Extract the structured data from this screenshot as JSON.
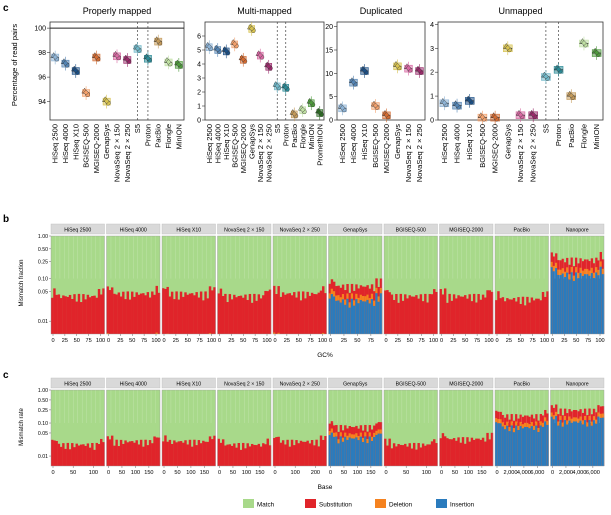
{
  "panel_letters": [
    "c",
    "b",
    "c"
  ],
  "panel_c": {
    "ylabel": "Percentage of read pairs",
    "facets": [
      {
        "title": "Properly mapped",
        "ylim": [
          92.5,
          100.5
        ],
        "ticks": [
          94,
          96,
          98,
          100
        ],
        "vlines": [
          8.5,
          9.5
        ],
        "hline": 100,
        "categories": [
          "HiSeq 2500",
          "HiSeq 4000",
          "HiSeq X10",
          "BGISEQ-500",
          "MGISEQ-2000",
          "GenapSys",
          "NovaSeq 2 × 150",
          "NovaSeq 2 × 250",
          "S5",
          "Proton",
          "PacBio",
          "Flongle",
          "MinION"
        ],
        "colors": [
          "#8db3d6",
          "#5384b4",
          "#1b4f86",
          "#f3a06b",
          "#d46a30",
          "#d7c24f",
          "#d868a2",
          "#9b2a6b",
          "#6fb7c8",
          "#2a8a96",
          "#c49a5a",
          "#bfe0a2",
          "#4e9a3c"
        ],
        "values": [
          97.6,
          97.1,
          96.5,
          94.7,
          97.6,
          94.0,
          97.7,
          97.4,
          98.3,
          97.5,
          98.9,
          97.2,
          97.0
        ]
      },
      {
        "title": "Multi-mapped",
        "ylim": [
          0,
          7
        ],
        "ticks": [
          0,
          1,
          2,
          3,
          4,
          5,
          6
        ],
        "vlines": [
          8.5,
          9.5
        ],
        "categories": [
          "HiSeq 2500",
          "HiSeq 4000",
          "HiSeq X10",
          "BGISEQ-500",
          "MGISEQ-2000",
          "GenapSys",
          "NovaSeq 2 × 150",
          "NovaSeq 2 × 250",
          "S5",
          "Proton",
          "PacBio",
          "Flongle",
          "MinION",
          "PromethION"
        ],
        "colors": [
          "#8db3d6",
          "#5384b4",
          "#1b4f86",
          "#f3a06b",
          "#d46a30",
          "#d7c24f",
          "#d868a2",
          "#9b2a6b",
          "#6fb7c8",
          "#2a8a96",
          "#c49a5a",
          "#bfe0a2",
          "#4e9a3c",
          "#2d6b24"
        ],
        "values": [
          5.2,
          5.0,
          4.9,
          5.4,
          4.3,
          6.5,
          4.6,
          3.8,
          2.4,
          2.3,
          0.4,
          0.7,
          1.2,
          0.5
        ]
      },
      {
        "title": "Duplicated",
        "ylim": [
          0,
          21
        ],
        "ticks": [
          0,
          5,
          10,
          15,
          20
        ],
        "categories": [
          "HiSeq 2500",
          "HiSeq 4000",
          "HiSeq X10",
          "BGISEQ-500",
          "MGISEQ-2000",
          "GenapSys",
          "NovaSeq 2 × 150",
          "NovaSeq 2 × 250"
        ],
        "colors": [
          "#8db3d6",
          "#5384b4",
          "#1b4f86",
          "#f3a06b",
          "#d46a30",
          "#d7c24f",
          "#d868a2",
          "#9b2a6b"
        ],
        "values": [
          2.5,
          8.0,
          10.5,
          3.0,
          1.0,
          11.5,
          11.0,
          10.5
        ]
      },
      {
        "title": "Unmapped",
        "ylim": [
          0,
          4.1
        ],
        "ticks": [
          0,
          1,
          2,
          3,
          4
        ],
        "vlines": [
          8.5,
          9.5
        ],
        "categories": [
          "HiSeq 2500",
          "HiSeq 4000",
          "HiSeq X10",
          "BGISEQ-500",
          "MGISEQ-2000",
          "GenapSys",
          "NovaSeq 2 × 150",
          "NovaSeq 2 × 250",
          "S5",
          "Proton",
          "PacBio",
          "Flongle",
          "MinION"
        ],
        "colors": [
          "#8db3d6",
          "#5384b4",
          "#1b4f86",
          "#f3a06b",
          "#d46a30",
          "#d7c24f",
          "#d868a2",
          "#9b2a6b",
          "#6fb7c8",
          "#2a8a96",
          "#c49a5a",
          "#bfe0a2",
          "#4e9a3c"
        ],
        "values": [
          0.7,
          0.6,
          0.8,
          0.1,
          0.1,
          3.0,
          0.2,
          0.2,
          1.8,
          2.1,
          1.0,
          3.2,
          2.8
        ]
      }
    ]
  },
  "panel_b": {
    "ylabel": "Mismatch fraction",
    "xlabel": "GC%",
    "yticks": [
      "1.00",
      "0.50",
      "0.25",
      "0.10",
      "0.05",
      "0.01"
    ],
    "facets": [
      {
        "title": "HiSeq 2500",
        "xticks": [
          "0",
          "25",
          "50",
          "75",
          "100"
        ],
        "error": 0.035
      },
      {
        "title": "HiSeq 4000",
        "xticks": [
          "0",
          "25",
          "50",
          "75",
          "100"
        ],
        "error": 0.04
      },
      {
        "title": "HiSeq X10",
        "xticks": [
          "0",
          "25",
          "50",
          "75",
          "100"
        ],
        "error": 0.04
      },
      {
        "title": "NovaSeq 2 × 150",
        "xticks": [
          "0",
          "25",
          "50",
          "75",
          "100"
        ],
        "error": 0.035
      },
      {
        "title": "NovaSeq 2 × 250",
        "xticks": [
          "0",
          "25",
          "50",
          "75",
          "100"
        ],
        "error": 0.04
      },
      {
        "title": "GenapSys",
        "xticks": [
          "0",
          "25",
          "50",
          "75"
        ],
        "error": 0.06
      },
      {
        "title": "BGISEQ-500",
        "xticks": [
          "0",
          "25",
          "50",
          "75",
          "100"
        ],
        "error": 0.035
      },
      {
        "title": "MGISEQ-2000",
        "xticks": [
          "0",
          "25",
          "50",
          "75",
          "100"
        ],
        "error": 0.035
      },
      {
        "title": "PacBio",
        "xticks": [
          "0",
          "25",
          "50",
          "75",
          "100"
        ],
        "error": 0.03
      },
      {
        "title": "Nanopore",
        "xticks": [
          "0",
          "25",
          "50",
          "75",
          "100"
        ],
        "error": 0.25
      }
    ]
  },
  "panel_c2": {
    "ylabel": "Mismatch rate",
    "xlabel": "Base",
    "yticks": [
      "1.00",
      "0.50",
      "0.25",
      "0.10",
      "0.05",
      "0.01"
    ],
    "facets": [
      {
        "title": "HiSeq 2500",
        "xticks": [
          "0",
          "50",
          "100"
        ],
        "error": 0.02
      },
      {
        "title": "HiSeq 4000",
        "xticks": [
          "0",
          "50",
          "100",
          "150"
        ],
        "error": 0.025
      },
      {
        "title": "HiSeq X10",
        "xticks": [
          "0",
          "50",
          "100",
          "150"
        ],
        "error": 0.025
      },
      {
        "title": "NovaSeq 2 × 150",
        "xticks": [
          "0",
          "50",
          "100",
          "150"
        ],
        "error": 0.02
      },
      {
        "title": "NovaSeq 2 × 250",
        "xticks": [
          "0",
          "100",
          "200"
        ],
        "error": 0.025
      },
      {
        "title": "GenapSys",
        "xticks": [
          "0",
          "50",
          "100",
          "150"
        ],
        "error": 0.07
      },
      {
        "title": "BGISEQ-500",
        "xticks": [
          "0",
          "50",
          "100"
        ],
        "error": 0.02
      },
      {
        "title": "MGISEQ-2000",
        "xticks": [
          "0",
          "50",
          "100",
          "150"
        ],
        "error": 0.03
      },
      {
        "title": "PacBio",
        "xticks": [
          "0",
          "2,000",
          "4,000",
          "6,000"
        ],
        "error": 0.15
      },
      {
        "title": "Nanopore",
        "xticks": [
          "0",
          "2,000",
          "4,000",
          "6,000"
        ],
        "error": 0.22
      }
    ]
  },
  "legend": [
    {
      "label": "Match",
      "color": "#a8d98a"
    },
    {
      "label": "Substitution",
      "color": "#e0242a"
    },
    {
      "label": "Deletion",
      "color": "#f5821f"
    },
    {
      "label": "Insertion",
      "color": "#2a7bbd"
    }
  ],
  "chart_data": [
    {
      "type": "box",
      "title": "Properly mapped",
      "ylabel": "Percentage of read pairs",
      "ylim": [
        92.5,
        100.5
      ],
      "categories": [
        "HiSeq 2500",
        "HiSeq 4000",
        "HiSeq X10",
        "BGISEQ-500",
        "MGISEQ-2000",
        "GenapSys",
        "NovaSeq 2 × 150",
        "NovaSeq 2 × 250",
        "S5",
        "Proton",
        "PacBio",
        "Flongle",
        "MinION"
      ],
      "values": [
        97.6,
        97.1,
        96.5,
        94.7,
        97.6,
        94.0,
        97.7,
        97.4,
        98.3,
        97.5,
        98.9,
        97.2,
        97.0
      ]
    },
    {
      "type": "box",
      "title": "Multi-mapped",
      "ylim": [
        0,
        7
      ],
      "categories": [
        "HiSeq 2500",
        "HiSeq 4000",
        "HiSeq X10",
        "BGISEQ-500",
        "MGISEQ-2000",
        "GenapSys",
        "NovaSeq 2 × 150",
        "NovaSeq 2 × 250",
        "S5",
        "Proton",
        "PacBio",
        "Flongle",
        "MinION",
        "PromethION"
      ],
      "values": [
        5.2,
        5.0,
        4.9,
        5.4,
        4.3,
        6.5,
        4.6,
        3.8,
        2.4,
        2.3,
        0.4,
        0.7,
        1.2,
        0.5
      ]
    },
    {
      "type": "box",
      "title": "Duplicated",
      "ylim": [
        0,
        21
      ],
      "categories": [
        "HiSeq 2500",
        "HiSeq 4000",
        "HiSeq X10",
        "BGISEQ-500",
        "MGISEQ-2000",
        "GenapSys",
        "NovaSeq 2 × 150",
        "NovaSeq 2 × 250"
      ],
      "values": [
        2.5,
        8.0,
        10.5,
        3.0,
        1.0,
        11.5,
        11.0,
        10.5
      ]
    },
    {
      "type": "box",
      "title": "Unmapped",
      "ylim": [
        0,
        4.1
      ],
      "categories": [
        "HiSeq 2500",
        "HiSeq 4000",
        "HiSeq X10",
        "BGISEQ-500",
        "MGISEQ-2000",
        "GenapSys",
        "NovaSeq 2 × 150",
        "NovaSeq 2 × 250",
        "S5",
        "Proton",
        "PacBio",
        "Flongle",
        "MinION"
      ],
      "values": [
        0.7,
        0.6,
        0.8,
        0.1,
        0.1,
        3.0,
        0.2,
        0.2,
        1.8,
        2.1,
        1.0,
        3.2,
        2.8
      ]
    },
    {
      "type": "area",
      "ylabel": "Mismatch fraction",
      "xlabel": "GC%",
      "series": [
        {
          "name": "Match",
          "values": [
            0.965,
            0.96,
            0.96,
            0.965,
            0.96,
            0.94,
            0.965,
            0.965,
            0.97,
            0.75
          ]
        },
        {
          "name": "Substitution",
          "values": [
            0.033,
            0.038,
            0.038,
            0.033,
            0.038,
            0.03,
            0.033,
            0.033,
            0.01,
            0.1
          ]
        },
        {
          "name": "Deletion",
          "values": [
            0.001,
            0.001,
            0.001,
            0.001,
            0.001,
            0.01,
            0.001,
            0.001,
            0.01,
            0.05
          ]
        },
        {
          "name": "Insertion",
          "values": [
            0.001,
            0.001,
            0.001,
            0.001,
            0.001,
            0.02,
            0.001,
            0.001,
            0.01,
            0.1
          ]
        }
      ],
      "categories": [
        "HiSeq 2500",
        "HiSeq 4000",
        "HiSeq X10",
        "NovaSeq 2 × 150",
        "NovaSeq 2 × 250",
        "GenapSys",
        "BGISEQ-500",
        "MGISEQ-2000",
        "PacBio",
        "Nanopore"
      ]
    },
    {
      "type": "area",
      "ylabel": "Mismatch rate",
      "xlabel": "Base",
      "series": [
        {
          "name": "Match",
          "values": [
            0.98,
            0.975,
            0.975,
            0.98,
            0.975,
            0.93,
            0.98,
            0.97,
            0.85,
            0.78
          ]
        },
        {
          "name": "Substitution",
          "values": [
            0.018,
            0.023,
            0.023,
            0.018,
            0.023,
            0.03,
            0.018,
            0.028,
            0.03,
            0.08
          ]
        },
        {
          "name": "Deletion",
          "values": [
            0.001,
            0.001,
            0.001,
            0.001,
            0.001,
            0.01,
            0.001,
            0.001,
            0.04,
            0.06
          ]
        },
        {
          "name": "Insertion",
          "values": [
            0.001,
            0.001,
            0.001,
            0.001,
            0.001,
            0.03,
            0.001,
            0.001,
            0.08,
            0.08
          ]
        }
      ],
      "categories": [
        "HiSeq 2500",
        "HiSeq 4000",
        "HiSeq X10",
        "NovaSeq 2 × 150",
        "NovaSeq 2 × 250",
        "GenapSys",
        "BGISEQ-500",
        "MGISEQ-2000",
        "PacBio",
        "Nanopore"
      ]
    }
  ]
}
